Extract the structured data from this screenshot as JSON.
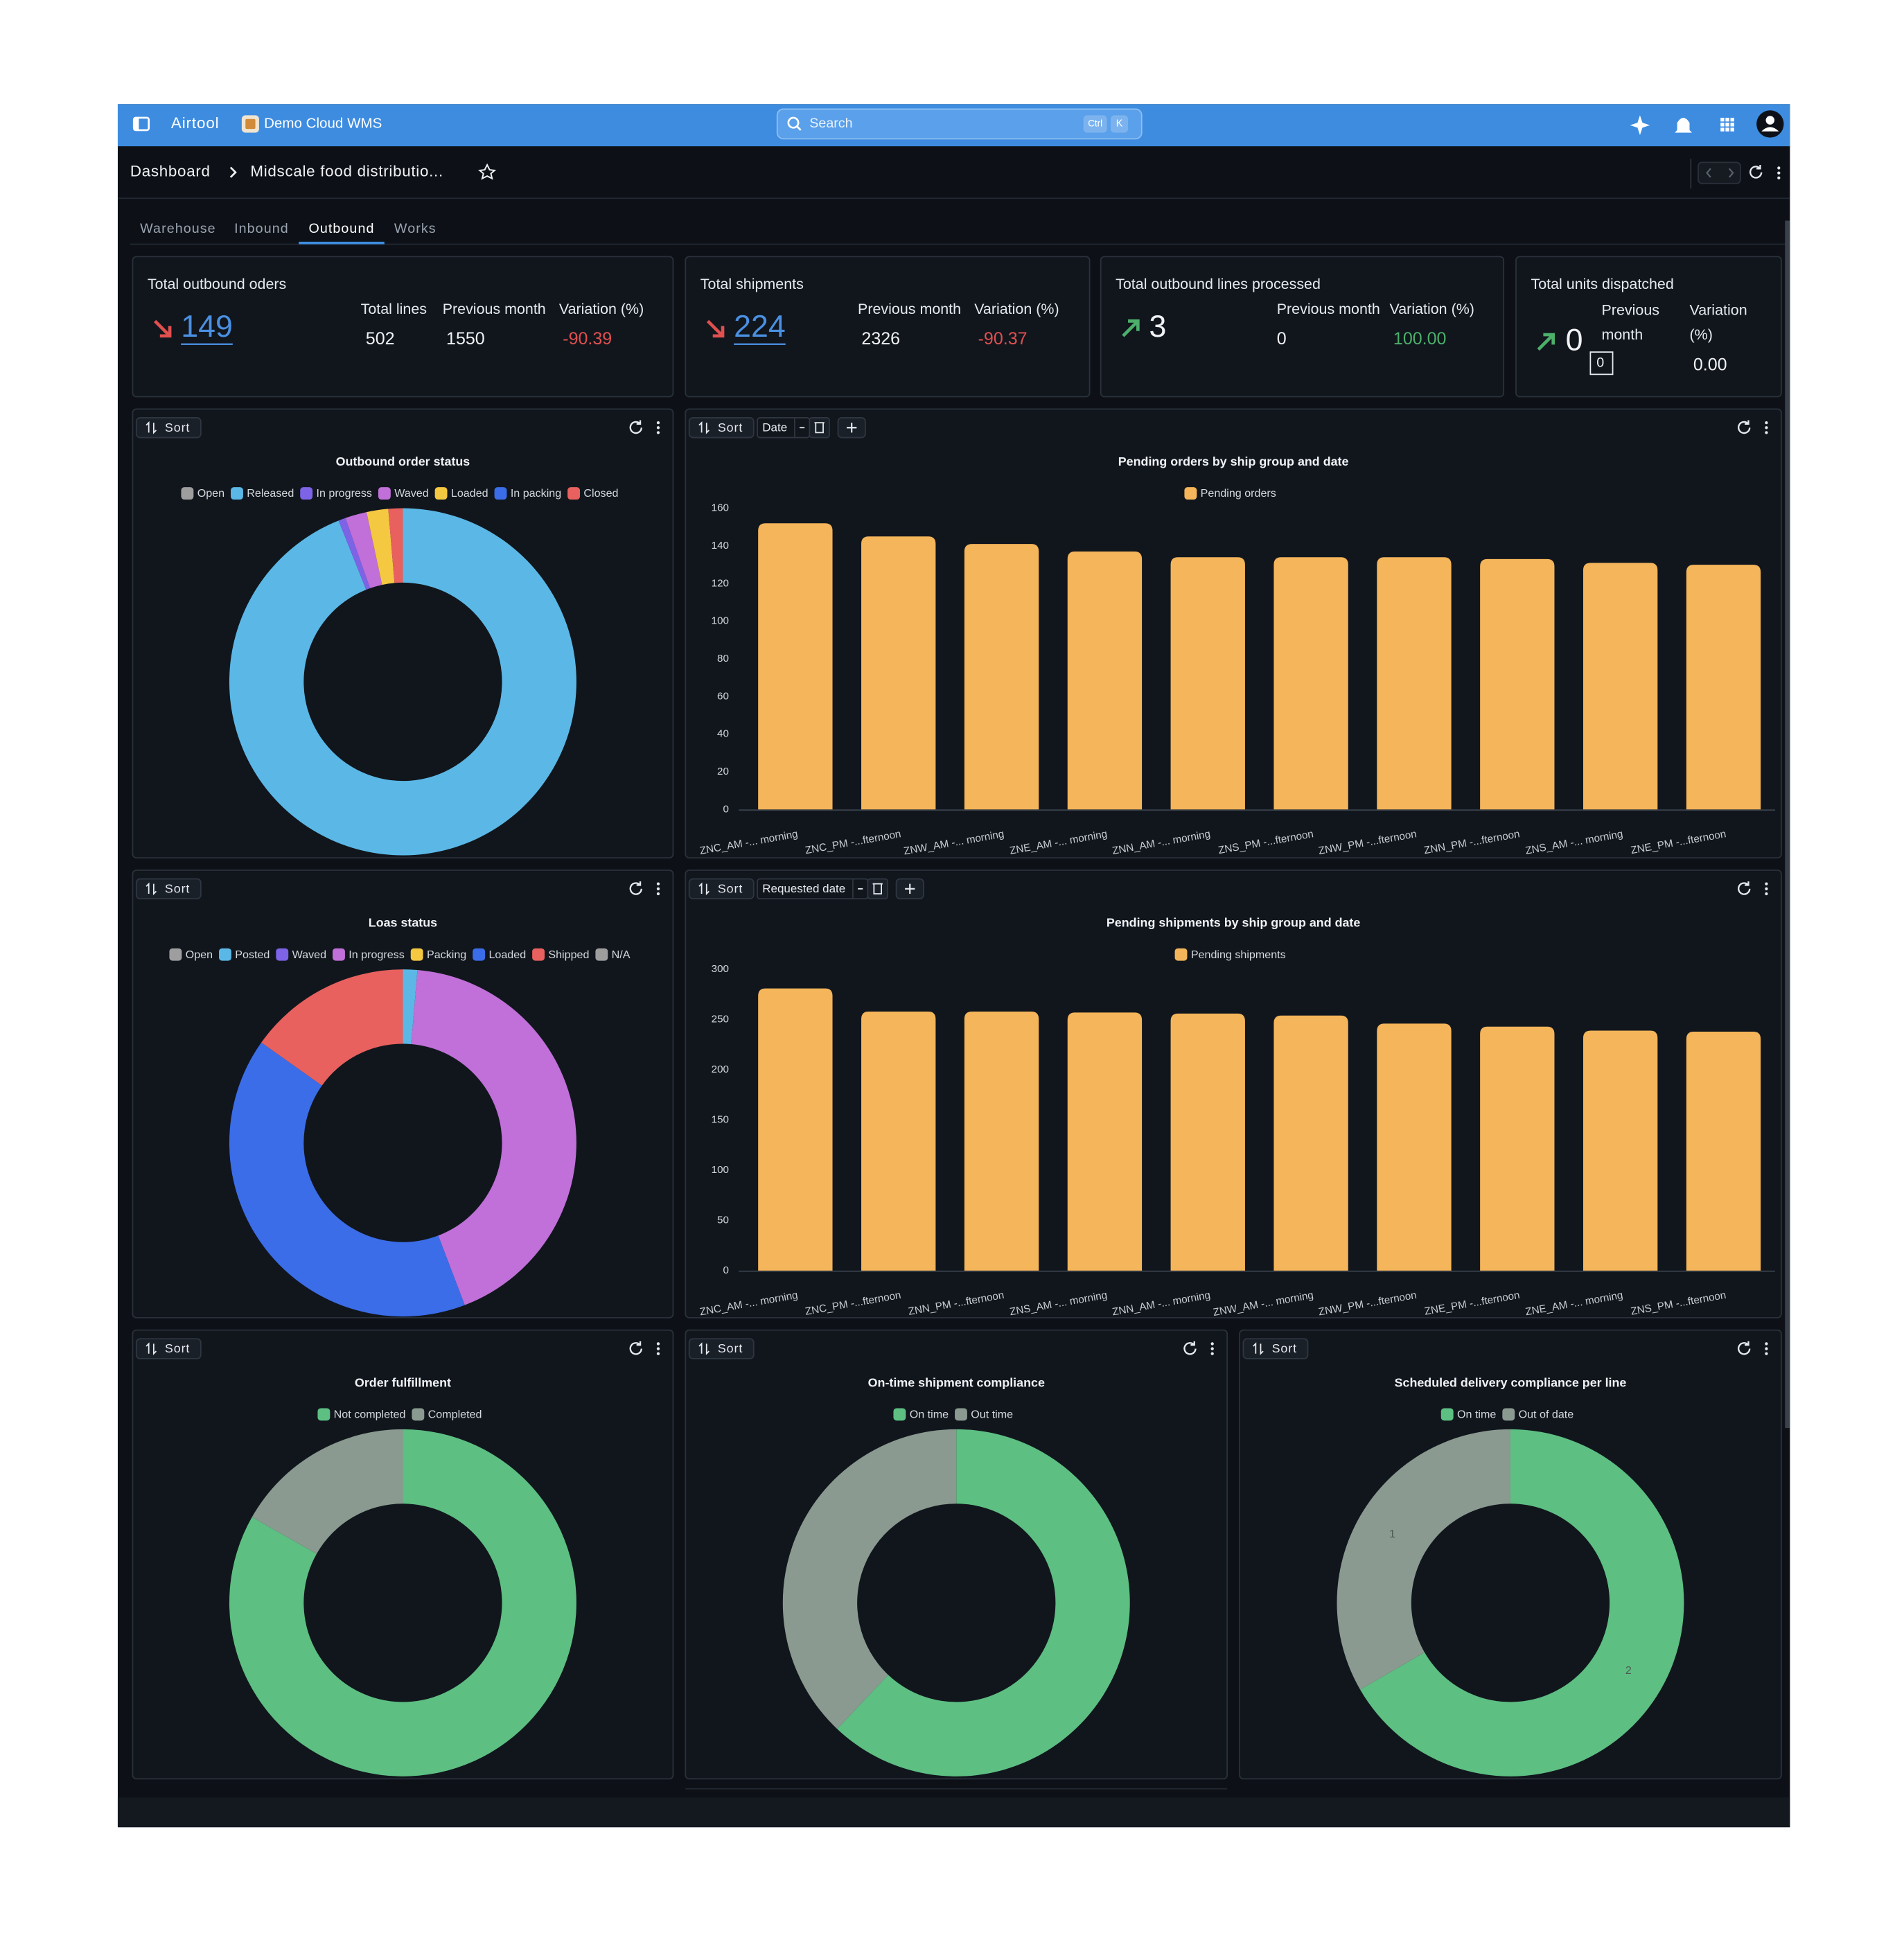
{
  "header": {
    "app": "Airtool",
    "workspace": "Demo Cloud WMS",
    "search": "Search",
    "shortcut": [
      "Ctrl",
      "K"
    ]
  },
  "breadcrumb": [
    "Dashboard",
    "Midscale food distributio..."
  ],
  "tabs": [
    "Warehouse",
    "Inbound",
    "Outbound",
    "Works"
  ],
  "active_tab": 2,
  "toolbar": {
    "sort": "Sort"
  },
  "kpis": [
    {
      "title": "Total outbound oders",
      "value": "149",
      "trend": "down",
      "link": true,
      "columns": [
        {
          "label": "Total lines",
          "value": "502"
        },
        {
          "label": "Previous month",
          "value": "1550"
        },
        {
          "label": "Variation (%)",
          "value": "-90.39"
        }
      ]
    },
    {
      "title": "Total shipments",
      "value": "224",
      "trend": "down",
      "link": true,
      "columns": [
        {
          "label": "Previous month",
          "value": "2326"
        },
        {
          "label": "Variation (%)",
          "value": "-90.37"
        }
      ]
    },
    {
      "title": "Total outbound lines processed",
      "value": "3",
      "trend": "up",
      "link": false,
      "columns": [
        {
          "label": "Previous month",
          "value": "0"
        },
        {
          "label": "Variation (%)",
          "value": "100.00"
        }
      ]
    },
    {
      "title": "Total units dispatched",
      "value": "0",
      "trend": "up",
      "link": false,
      "columns": [
        {
          "label": "Previous month",
          "value": "0"
        },
        {
          "label": "Variation (%)",
          "value": "0.00"
        }
      ]
    }
  ],
  "chart_data": [
    {
      "type": "donut",
      "title": "Outbound order status",
      "categories": [
        "Open",
        "Released",
        "In progress",
        "Waved",
        "Loaded",
        "In packing",
        "Closed"
      ],
      "values": [
        0,
        140,
        1,
        3,
        3,
        0,
        2
      ],
      "colors": [
        "#9e9e9e",
        "#5bb8e6",
        "#7d63e6",
        "#c070d8",
        "#f5c842",
        "#3b6de8",
        "#e8615e"
      ]
    },
    {
      "type": "bar",
      "title": "Pending orders by ship group and date",
      "filter": "Date",
      "categories": [
        "ZNC_AM -... morning",
        "ZNC_PM -...fternoon",
        "ZNW_AM -... morning",
        "ZNE_AM -... morning",
        "ZNN_AM -... morning",
        "ZNS_PM -...fternoon",
        "ZNW_PM -...fternoon",
        "ZNN_PM -...fternoon",
        "ZNS_AM -... morning",
        "ZNE_PM -...fternoon"
      ],
      "series": [
        {
          "name": "Pending orders",
          "color": "#f5b55a",
          "values": [
            152,
            145,
            141,
            137,
            134,
            134,
            134,
            133,
            131,
            130
          ]
        }
      ],
      "ylim": [
        0,
        160
      ],
      "yticks": [
        0,
        20,
        40,
        60,
        80,
        100,
        120,
        140,
        160
      ]
    },
    {
      "type": "donut",
      "title": "Loas status",
      "categories": [
        "Open",
        "Posted",
        "Waved",
        "In progress",
        "Packing",
        "Loaded",
        "Shipped",
        "N/A"
      ],
      "values": [
        0,
        3,
        0,
        96,
        0,
        91,
        34,
        0
      ],
      "colors": [
        "#9e9e9e",
        "#5bb8e6",
        "#7d63e6",
        "#c070d8",
        "#f5c842",
        "#3b6de8",
        "#e8615e",
        "#9e9e9e"
      ]
    },
    {
      "type": "bar",
      "title": "Pending shipments by ship group and date",
      "filter": "Requested date",
      "categories": [
        "ZNC_AM -... morning",
        "ZNC_PM -...fternoon",
        "ZNN_PM -...fternoon",
        "ZNS_AM -... morning",
        "ZNN_AM -... morning",
        "ZNW_AM -... morning",
        "ZNW_PM -...fternoon",
        "ZNE_PM -...fternoon",
        "ZNE_AM -... morning",
        "ZNS_PM -...fternoon"
      ],
      "series": [
        {
          "name": "Pending shipments",
          "color": "#f5b55a",
          "values": [
            281,
            258,
            258,
            257,
            256,
            254,
            246,
            243,
            239,
            238
          ]
        }
      ],
      "ylim": [
        0,
        300
      ],
      "yticks": [
        0,
        50,
        100,
        150,
        200,
        250,
        300
      ]
    },
    {
      "type": "donut",
      "title": "Order fulfillment",
      "categories": [
        "Not completed",
        "Completed"
      ],
      "values": [
        124,
        25
      ],
      "colors": [
        "#5dbf82",
        "#8a9a90"
      ]
    },
    {
      "type": "donut",
      "title": "On-time shipment compliance",
      "categories": [
        "On time",
        "Out time"
      ],
      "values": [
        139,
        85
      ],
      "colors": [
        "#5dbf82",
        "#8a9a90"
      ]
    },
    {
      "type": "donut",
      "title": "Scheduled delivery compliance per line",
      "categories": [
        "On time",
        "Out of date"
      ],
      "values": [
        2,
        1
      ],
      "colors": [
        "#5dbf82",
        "#8a9a90"
      ],
      "data_labels": true
    }
  ]
}
